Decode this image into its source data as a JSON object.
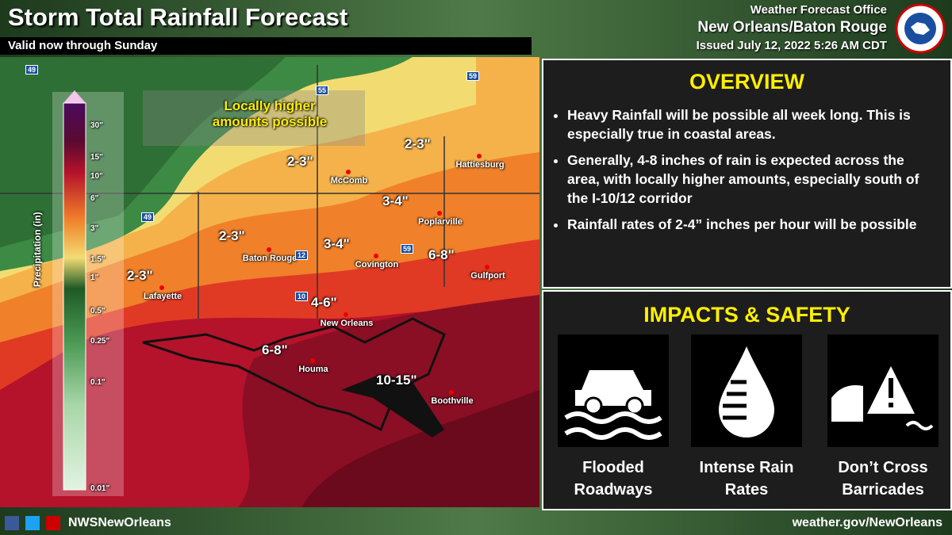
{
  "header": {
    "title": "Storm Total Rainfall Forecast",
    "subtitle": "Valid now through Sunday",
    "office": "Weather Forecast Office",
    "office_name": "New Orleans/Baton Rouge",
    "issued": "Issued July 12, 2022 5:26 AM CDT"
  },
  "map": {
    "legend_title": "Precipitation (in)",
    "legend_labels": [
      "30\"",
      "15\"",
      "10\"",
      "6\"",
      "3\"",
      "1.5\"",
      "1\"",
      "0.5\"",
      "0.25\"",
      "0.1\"",
      "0.01\""
    ],
    "callout": "Locally higher amounts possible",
    "amounts": [
      "2-3\"",
      "2-3\"",
      "3-4\"",
      "2-3\"",
      "3-4\"",
      "6-8\"",
      "2-3\"",
      "4-6\"",
      "6-8\"",
      "10-15\""
    ],
    "cities": [
      "McComb",
      "Hattiesburg",
      "Poplarville",
      "Baton Rouge",
      "Covington",
      "Gulfport",
      "Lafayette",
      "New Orleans",
      "Houma",
      "Boothville"
    ],
    "highways": [
      "49",
      "55",
      "59",
      "49",
      "12",
      "59",
      "10"
    ]
  },
  "overview": {
    "title": "OVERVIEW",
    "bullets": [
      "Heavy Rainfall will be possible all week long. This is especially true in coastal areas.",
      "Generally, 4-8 inches of rain is expected across the area, with locally higher amounts, especially south of the I-10/12 corridor",
      "Rainfall rates of 2-4” inches per hour will be possible"
    ]
  },
  "impacts": {
    "title": "IMPACTS & SAFETY",
    "items": [
      "Flooded Roadways",
      "Intense Rain Rates",
      "Don’t Cross Barricades"
    ]
  },
  "footer": {
    "handle": "NWSNewOrleans",
    "website": "weather.gov/NewOrleans"
  }
}
